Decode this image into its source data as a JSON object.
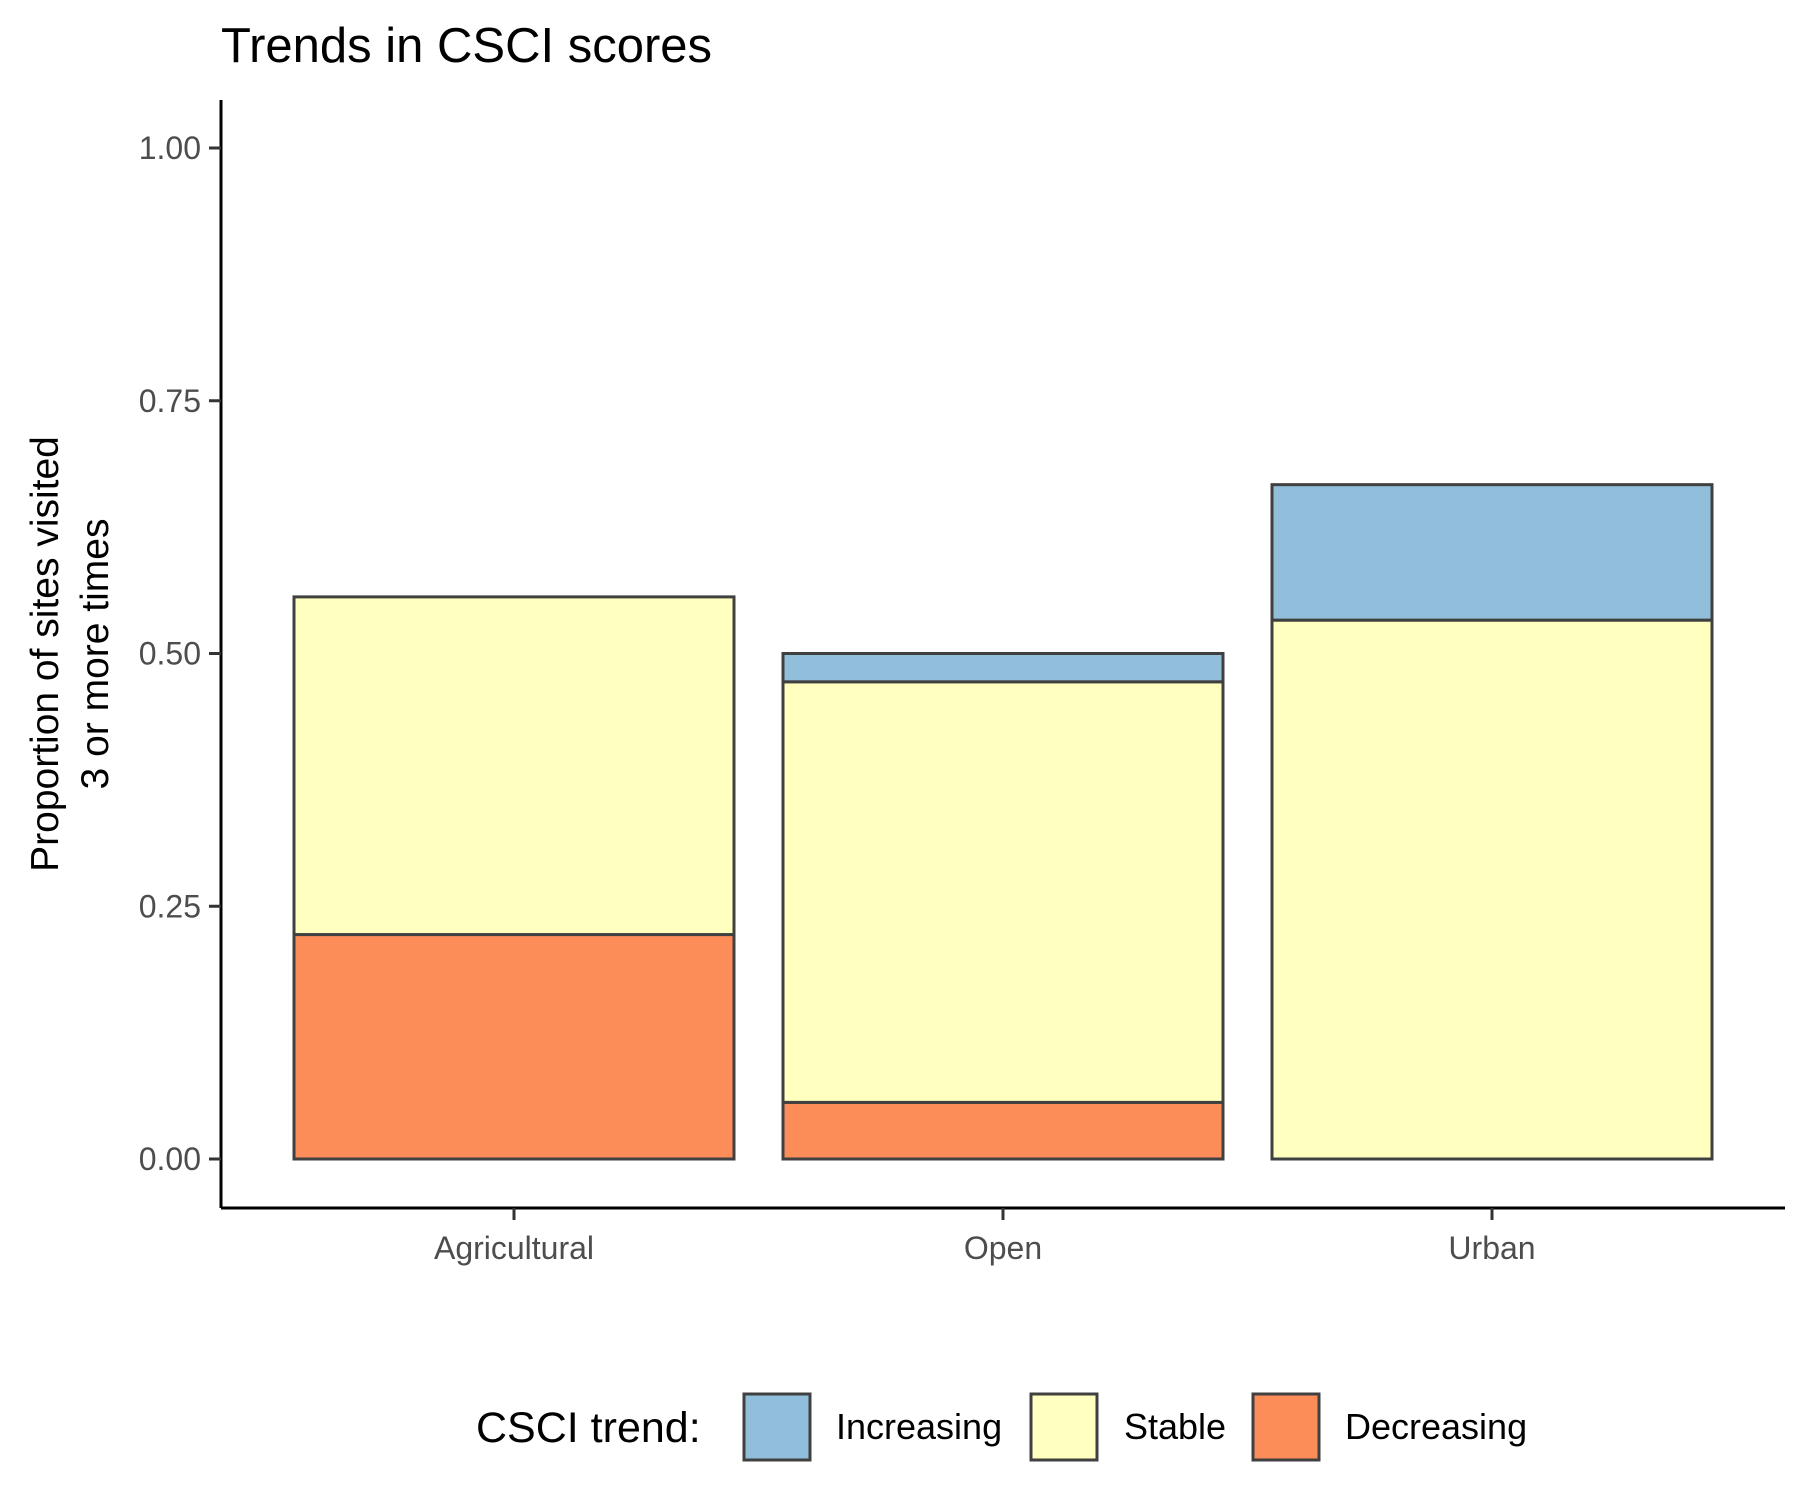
{
  "chart_data": {
    "type": "bar",
    "stacked": true,
    "title": "Trends in CSCI scores",
    "ylabel": [
      "Proportion of sites visited",
      "3 or more times"
    ],
    "xlabel": "",
    "categories": [
      "Agricultural",
      "Open",
      "Urban"
    ],
    "ylim": [
      0,
      1
    ],
    "yticks": [
      "0.00",
      "0.25",
      "0.50",
      "0.75",
      "1.00"
    ],
    "ytick_values": [
      0,
      0.25,
      0.5,
      0.75,
      1
    ],
    "grid": false,
    "legend": {
      "title": "CSCI trend:",
      "position": "bottom"
    },
    "series": [
      {
        "name": "Decreasing",
        "color": "#fc8d59",
        "values": [
          0.222,
          0.056,
          0.0
        ]
      },
      {
        "name": "Stable",
        "color": "#ffffbf",
        "values": [
          0.334,
          0.416,
          0.533
        ]
      },
      {
        "name": "Increasing",
        "color": "#91bfdb",
        "values": [
          0.0,
          0.028,
          0.134
        ]
      }
    ],
    "legend_order": [
      "Increasing",
      "Stable",
      "Decreasing"
    ]
  }
}
